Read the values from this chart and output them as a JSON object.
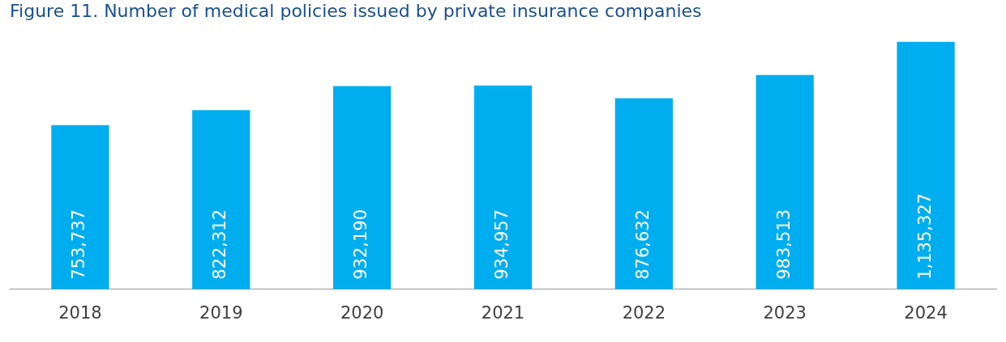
{
  "chart_data": {
    "type": "bar",
    "title": "Figure 11. Number of medical policies issued by private insurance companies",
    "categories": [
      "2018",
      "2019",
      "2020",
      "2021",
      "2022",
      "2023",
      "2024"
    ],
    "values": [
      753737,
      822312,
      932190,
      934957,
      876632,
      983513,
      1135327
    ],
    "value_labels": [
      "753,737",
      "822,312",
      "932,190",
      "934,957",
      "876,632",
      "983,513",
      "1,135,327"
    ],
    "color": "#00aeef",
    "grid": false,
    "legend": false
  }
}
